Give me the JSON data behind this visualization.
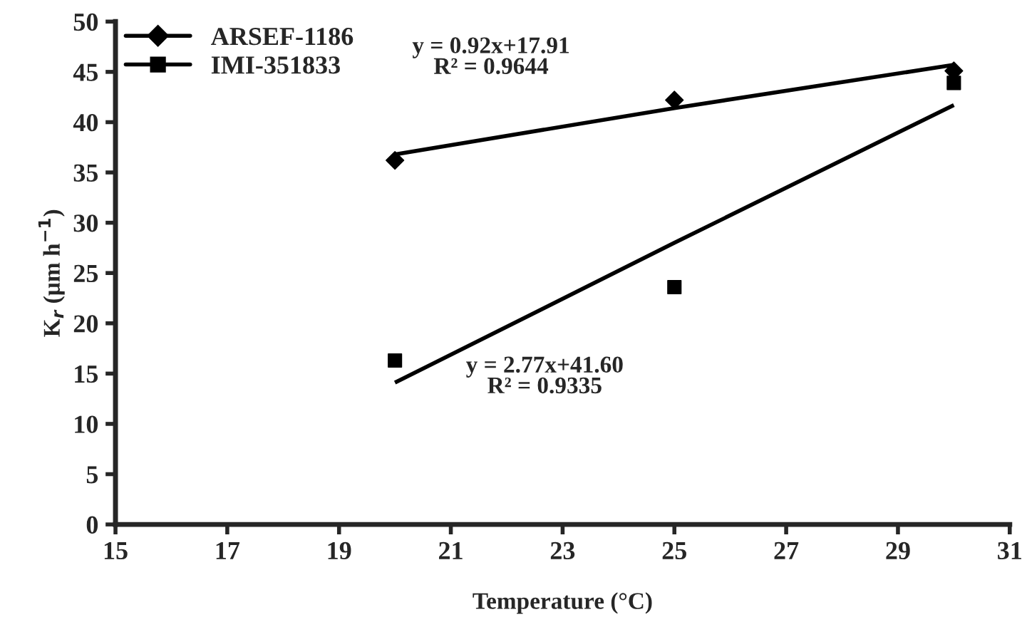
{
  "chart_data": {
    "type": "scatter",
    "xlabel": "Temperature (°C)",
    "ylabel": "K$_{r}$ (µm h$^{−1}$)",
    "x": [
      20,
      25,
      30
    ],
    "series": [
      {
        "name": "ARSEF-1186",
        "color": "#000000",
        "marker": "diamond",
        "values": [
          36.2,
          42.2,
          45.1
        ]
      },
      {
        "name": "IMI-351833",
        "color": "#000000",
        "marker": "square",
        "values": [
          16.3,
          23.6,
          43.9
        ]
      },
      {
        "type": "line",
        "color": "#000000",
        "values": [
          36.8,
          41.4,
          45.7
        ],
        "marker": "none",
        "line_style": "solid"
      },
      {
        "type": "line",
        "color": "#000000",
        "values": [
          14.1,
          28.0,
          41.7
        ],
        "marker": "none",
        "line_style": "solid"
      }
    ],
    "annotations": [
      "y = 0.92x+17.91\nR² = 0.9644",
      "y = 2.77x+41.60\nR² = 0.9335"
    ],
    "xlim": [
      15,
      31
    ],
    "xticks": [
      15,
      17,
      19,
      21,
      23,
      25,
      27,
      29,
      31
    ],
    "ylim": [
      0,
      50
    ],
    "yticks": [
      0,
      5,
      10,
      15,
      20,
      25,
      30,
      35,
      40,
      45,
      50
    ],
    "legend": "top left",
    "grid": false
  }
}
